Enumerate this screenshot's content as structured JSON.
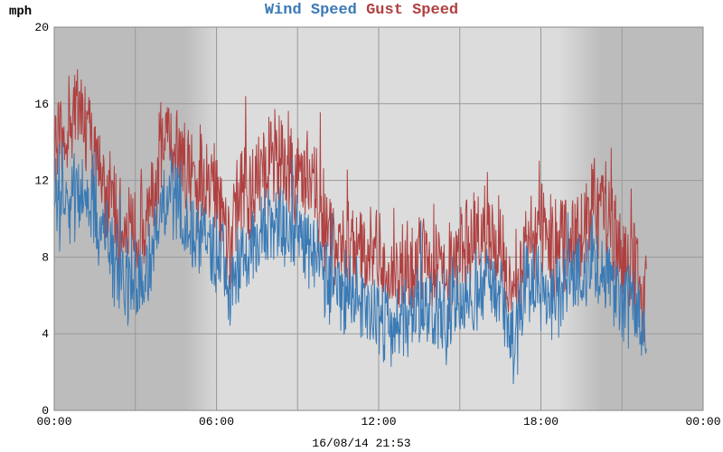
{
  "chart_data": {
    "type": "line",
    "ylabel": "mph",
    "ylim": [
      0,
      20
    ],
    "yticks": [
      "0",
      "4",
      "8",
      "12",
      "16",
      "20"
    ],
    "xlim_hours": [
      0,
      24
    ],
    "xticks": [
      "00:00",
      "06:00",
      "12:00",
      "18:00",
      "00:00"
    ],
    "footer": "16/08/14 21:53",
    "grid": true,
    "night_shading": true,
    "series": [
      {
        "name": "Wind Speed",
        "color": "#3a7ab5",
        "x_hours": [
          0,
          0.5,
          1,
          1.5,
          2,
          2.5,
          3,
          3.5,
          4,
          4.5,
          5,
          5.5,
          6,
          6.5,
          7,
          7.5,
          8,
          8.5,
          9,
          9.5,
          10,
          10.5,
          11,
          11.5,
          12,
          12.5,
          13,
          13.5,
          14,
          14.5,
          15,
          15.5,
          16,
          16.5,
          17,
          17.5,
          18,
          18.5,
          19,
          19.5,
          20,
          20.5,
          21,
          21.5,
          21.9
        ],
        "values": [
          10.5,
          11,
          11.5,
          10,
          8.5,
          7,
          6.5,
          7.5,
          11,
          11.5,
          9.5,
          9,
          8.5,
          6.5,
          8,
          9,
          10,
          9.5,
          9,
          8.5,
          7,
          6,
          6,
          5.5,
          5,
          4.5,
          4.5,
          5.5,
          5,
          4.5,
          5.5,
          6,
          6.5,
          6,
          3.5,
          6.5,
          6.5,
          6,
          6.5,
          7,
          7.5,
          7,
          6,
          5,
          4
        ]
      },
      {
        "name": "Gust Speed",
        "color": "#b04040",
        "x_hours": [
          0,
          0.5,
          1,
          1.5,
          2,
          2.5,
          3,
          3.5,
          4,
          4.5,
          5,
          5.5,
          6,
          6.5,
          7,
          7.5,
          8,
          8.5,
          9,
          9.5,
          10,
          10.5,
          11,
          11.5,
          12,
          12.5,
          13,
          13.5,
          14,
          14.5,
          15,
          15.5,
          16,
          16.5,
          17,
          17.5,
          18,
          18.5,
          19,
          19.5,
          20,
          20.5,
          21,
          21.5,
          21.9
        ],
        "values": [
          14,
          15,
          16,
          13.5,
          11,
          9.5,
          9,
          10,
          14,
          14,
          12.5,
          12,
          11.5,
          9,
          11,
          12,
          13,
          13,
          12.5,
          12,
          10,
          8.5,
          8.5,
          8,
          7.5,
          7,
          7,
          8,
          7.5,
          7,
          8,
          9,
          9,
          8.5,
          5.5,
          9,
          9,
          8.5,
          9,
          9.5,
          11,
          10,
          8,
          7,
          6
        ]
      }
    ]
  }
}
